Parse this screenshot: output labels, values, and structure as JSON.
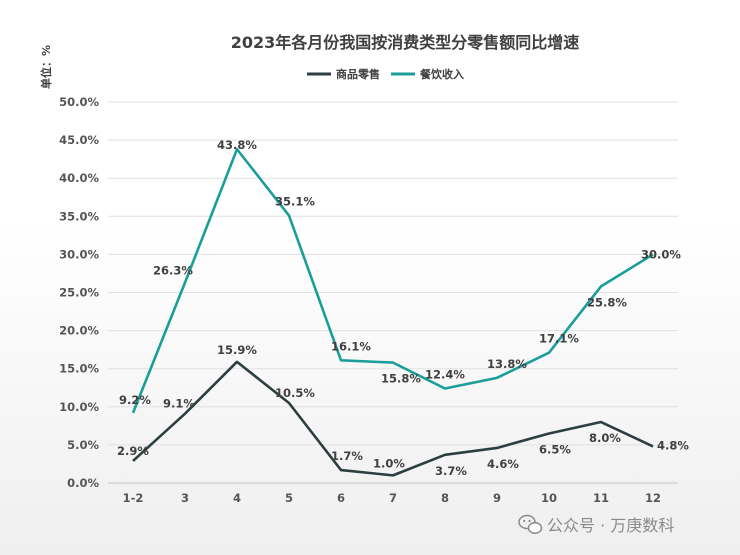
{
  "chart_data": {
    "type": "line",
    "title": "2023年各月份我国按消费类型分零售额同比增速",
    "ylabel": "单位：%",
    "xlabel": "",
    "categories": [
      "1-2",
      "3",
      "4",
      "5",
      "6",
      "7",
      "8",
      "9",
      "10",
      "11",
      "12"
    ],
    "ylim": [
      0,
      50
    ],
    "yticks": [
      "0.0%",
      "5.0%",
      "10.0%",
      "15.0%",
      "20.0%",
      "25.0%",
      "30.0%",
      "35.0%",
      "40.0%",
      "45.0%",
      "50.0%"
    ],
    "grid": true,
    "legend_position": "top",
    "series": [
      {
        "name": "商品零售",
        "color": "#2d3e40",
        "values": [
          2.9,
          9.1,
          15.9,
          10.5,
          1.7,
          1.0,
          3.7,
          4.6,
          6.5,
          8.0,
          4.8
        ],
        "labels": [
          "2.9%",
          "9.1%",
          "15.9%",
          "10.5%",
          "1.7%",
          "1.0%",
          "3.7%",
          "4.6%",
          "6.5%",
          "8.0%",
          "4.8%"
        ]
      },
      {
        "name": "餐饮收入",
        "color": "#1a9e99",
        "values": [
          9.2,
          26.3,
          43.8,
          35.1,
          16.1,
          15.8,
          12.4,
          13.8,
          17.1,
          25.8,
          30.0
        ],
        "labels": [
          "9.2%",
          "26.3%",
          "43.8%",
          "35.1%",
          "16.1%",
          "15.8%",
          "12.4%",
          "13.8%",
          "17.1%",
          "25.8%",
          "30.0%"
        ]
      }
    ]
  },
  "watermark": {
    "icon": "wechat-icon",
    "text": "公众号 · 万庚数科"
  }
}
